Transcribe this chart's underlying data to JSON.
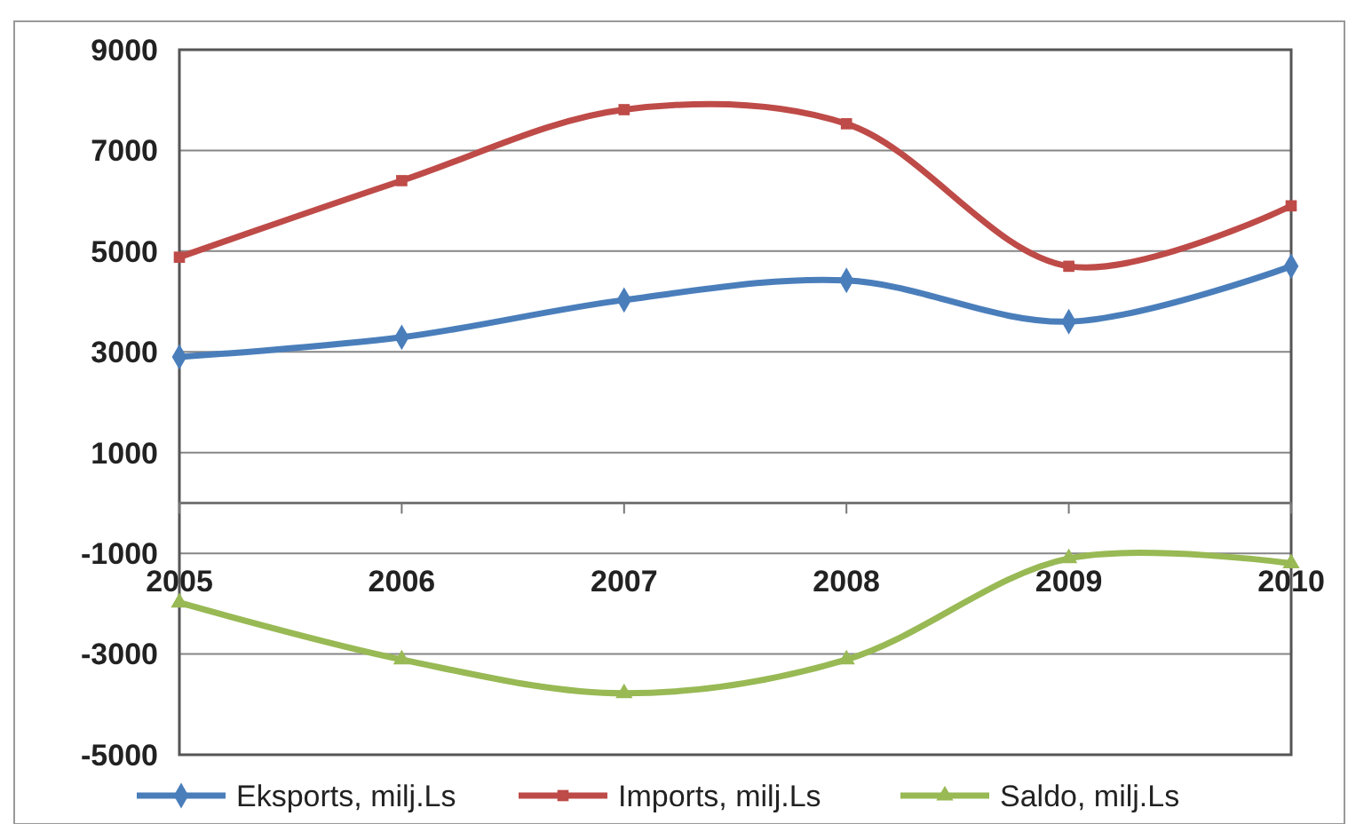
{
  "chart_data": {
    "type": "line",
    "categories": [
      "2005",
      "2006",
      "2007",
      "2008",
      "2009",
      "2010"
    ],
    "series": [
      {
        "name": "Eksports, milj.Ls",
        "color": "#4a7ebb",
        "marker": "diamond",
        "values": [
          2900,
          3290,
          4030,
          4420,
          3600,
          4700
        ]
      },
      {
        "name": "Imports, milj.Ls",
        "color": "#be4b48",
        "marker": "square",
        "values": [
          4880,
          6400,
          7810,
          7530,
          4700,
          5900
        ]
      },
      {
        "name": "Saldo, milj.Ls",
        "color": "#98b954",
        "marker": "triangle",
        "values": [
          -1980,
          -3110,
          -3780,
          -3110,
          -1100,
          -1200
        ]
      }
    ],
    "ylim": [
      -5000,
      9000
    ],
    "yticks": [
      -5000,
      -3000,
      -1000,
      1000,
      3000,
      5000,
      7000,
      9000
    ],
    "grid": "y",
    "legend": "bottom"
  }
}
